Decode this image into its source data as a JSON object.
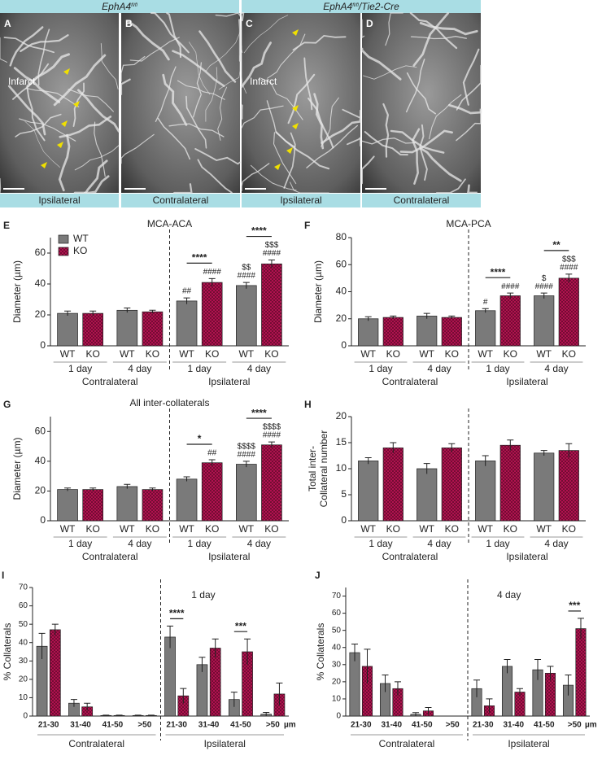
{
  "figure": {
    "headers": [
      [
        "EphA4",
        "fl/fl"
      ],
      [
        "EphA4",
        "fl/fl",
        "/Tie2-Cre"
      ]
    ],
    "images": [
      {
        "letter": "A",
        "label": "Infarct",
        "region": "Ipsilateral"
      },
      {
        "letter": "B",
        "region": "Contralateral"
      },
      {
        "letter": "C",
        "label": "Infarct",
        "region": "Ipsilateral"
      },
      {
        "letter": "D",
        "region": "Contralateral"
      }
    ]
  },
  "chart_data": [
    {
      "panel": "E",
      "type": "bar",
      "title": "MCA-ACA",
      "ylabel": [
        "Diameter (µm)"
      ],
      "ylim": [
        0,
        70
      ],
      "yticks": [
        0,
        20,
        40,
        60
      ],
      "categories": [
        "1 day",
        "4 day",
        "1 day",
        "4 day"
      ],
      "sides": [
        "Contralateral",
        "Ipsilateral"
      ],
      "legend": "upper left",
      "series": [
        {
          "name": "WT",
          "color": "#7a7a7a",
          "values": [
            21,
            23,
            29,
            39
          ],
          "errors": [
            1.5,
            1.5,
            2,
            2
          ],
          "annotations": [
            [],
            [],
            [
              "##"
            ],
            [
              "$$",
              "####"
            ]
          ]
        },
        {
          "name": "KO",
          "color": "#b0124f",
          "pattern": "checker",
          "values": [
            21,
            22,
            41,
            53
          ],
          "errors": [
            1.5,
            1,
            2.5,
            2.5
          ],
          "annotations": [
            [],
            [],
            [
              "####"
            ],
            [
              "$$$",
              "####"
            ]
          ]
        }
      ],
      "brackets": [
        null,
        null,
        "****",
        "****"
      ]
    },
    {
      "panel": "F",
      "type": "bar",
      "title": "MCA-PCA",
      "ylabel": [
        "Diameter (µm)"
      ],
      "ylim": [
        0,
        80
      ],
      "yticks": [
        0,
        20,
        40,
        60,
        80
      ],
      "categories": [
        "1 day",
        "4 day",
        "1 day",
        "4 day"
      ],
      "sides": [
        "Contralateral",
        "Ipsilateral"
      ],
      "series": [
        {
          "name": "WT",
          "color": "#7a7a7a",
          "values": [
            20,
            22,
            26,
            37
          ],
          "errors": [
            1.5,
            2,
            1.5,
            2
          ],
          "annotations": [
            [],
            [],
            [
              "#"
            ],
            [
              "$",
              "####"
            ]
          ]
        },
        {
          "name": "KO",
          "color": "#b0124f",
          "pattern": "checker",
          "values": [
            21,
            21,
            37,
            50
          ],
          "errors": [
            1,
            1,
            2,
            3
          ],
          "annotations": [
            [],
            [],
            [
              "####"
            ],
            [
              "$$$",
              "####"
            ]
          ]
        }
      ],
      "brackets": [
        null,
        null,
        "****",
        "**"
      ]
    },
    {
      "panel": "G",
      "type": "bar",
      "title": "All inter-collaterals",
      "ylabel": [
        "Diameter (µm)"
      ],
      "ylim": [
        0,
        70
      ],
      "yticks": [
        0,
        20,
        40,
        60
      ],
      "categories": [
        "1 day",
        "4 day",
        "1 day",
        "4 day"
      ],
      "sides": [
        "Contralateral",
        "Ipsilateral"
      ],
      "series": [
        {
          "name": "WT",
          "color": "#7a7a7a",
          "values": [
            21,
            23,
            28,
            38
          ],
          "errors": [
            1,
            1.5,
            1.5,
            2
          ],
          "annotations": [
            [],
            [],
            [],
            [
              "$$$$",
              "####"
            ]
          ]
        },
        {
          "name": "KO",
          "color": "#b0124f",
          "pattern": "checker",
          "values": [
            21,
            21,
            39,
            51
          ],
          "errors": [
            1,
            1,
            2,
            2
          ],
          "annotations": [
            [],
            [],
            [
              "##"
            ],
            [
              "$$$$",
              "####"
            ]
          ]
        }
      ],
      "brackets": [
        null,
        null,
        "*",
        "****"
      ]
    },
    {
      "panel": "H",
      "type": "bar",
      "ylabel": [
        "Total inter-",
        "Collateral number"
      ],
      "ylim": [
        0,
        20
      ],
      "yticks": [
        0,
        5,
        10,
        15,
        20
      ],
      "categories": [
        "1 day",
        "4 day",
        "1 day",
        "4 day"
      ],
      "sides": [
        "Contralateral",
        "Ipsilateral"
      ],
      "series": [
        {
          "name": "WT",
          "color": "#7a7a7a",
          "values": [
            11.5,
            10,
            11.5,
            13
          ],
          "errors": [
            0.6,
            1,
            1,
            0.5
          ],
          "annotations": [
            [],
            [],
            [],
            []
          ]
        },
        {
          "name": "KO",
          "color": "#b0124f",
          "pattern": "checker",
          "values": [
            14,
            14,
            14.5,
            13.5
          ],
          "errors": [
            1,
            0.8,
            1,
            1.3
          ],
          "annotations": [
            [],
            [],
            [],
            []
          ]
        }
      ],
      "brackets": [
        null,
        null,
        null,
        null
      ]
    },
    {
      "panel": "I",
      "type": "bar",
      "label": "1 day",
      "unit": "µm",
      "ylabel": [
        "% Collaterals"
      ],
      "ylim": [
        0,
        70
      ],
      "yticks": [
        0,
        10,
        20,
        30,
        40,
        50,
        60,
        70
      ],
      "categories": [
        "21-30",
        "31-40",
        "41-50",
        ">50",
        "21-30",
        "31-40",
        "41-50",
        ">50"
      ],
      "sides": [
        "Contralateral",
        "Ipsilateral"
      ],
      "series": [
        {
          "color": "#7a7a7a",
          "values": [
            38,
            7,
            0.3,
            0.3,
            43,
            28,
            9,
            1
          ],
          "errors": [
            7,
            2,
            0.2,
            0.2,
            6,
            4,
            4,
            1
          ]
        },
        {
          "color": "#b0124f",
          "pattern": "checker",
          "values": [
            47,
            5,
            0.3,
            0.3,
            11,
            37,
            35,
            12
          ],
          "errors": [
            3,
            2,
            0.2,
            0.2,
            4,
            5,
            7,
            6
          ]
        }
      ],
      "brackets": [
        null,
        null,
        null,
        null,
        "****",
        null,
        "***",
        null
      ]
    },
    {
      "panel": "J",
      "type": "bar",
      "label": "4 day",
      "unit": "µm",
      "ylabel": [
        "% Collaterals"
      ],
      "ylim": [
        0,
        75
      ],
      "yticks": [
        0,
        10,
        20,
        30,
        40,
        50,
        60,
        70
      ],
      "categories": [
        "21-30",
        "31-40",
        "41-50",
        ">50",
        "21-30",
        "31-40",
        "41-50",
        ">50"
      ],
      "sides": [
        "Contralateral",
        "Ipsilateral"
      ],
      "series": [
        {
          "color": "#7a7a7a",
          "values": [
            37,
            19,
            1,
            0,
            16,
            29,
            27,
            18
          ],
          "errors": [
            5,
            5,
            1,
            0,
            5,
            4,
            6,
            6
          ]
        },
        {
          "color": "#b0124f",
          "pattern": "checker",
          "values": [
            29,
            16,
            3,
            0,
            6,
            14,
            25,
            51
          ],
          "errors": [
            10,
            4,
            2,
            0,
            4,
            2,
            4,
            6
          ]
        }
      ],
      "brackets": [
        null,
        null,
        null,
        null,
        null,
        null,
        null,
        "***"
      ]
    }
  ]
}
